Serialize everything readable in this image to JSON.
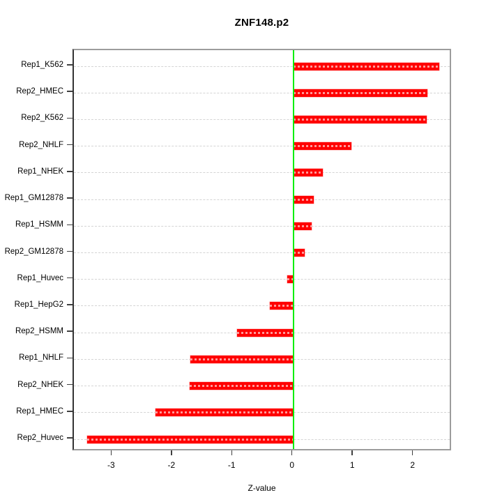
{
  "chart_data": {
    "type": "bar",
    "orientation": "horizontal",
    "title": "ZNF148.p2",
    "xlabel": "Z-value",
    "categories": [
      "Rep1_K562",
      "Rep2_HMEC",
      "Rep2_K562",
      "Rep2_NHLF",
      "Rep1_NHEK",
      "Rep1_GM12878",
      "Rep1_HSMM",
      "Rep2_GM12878",
      "Rep1_Huvec",
      "Rep1_HepG2",
      "Rep2_HSMM",
      "Rep1_NHLF",
      "Rep2_NHEK",
      "Rep1_HMEC",
      "Rep2_Huvec"
    ],
    "values": [
      2.42,
      2.22,
      2.21,
      0.96,
      0.49,
      0.34,
      0.3,
      0.19,
      -0.1,
      -0.39,
      -0.93,
      -1.71,
      -1.72,
      -2.29,
      -3.42
    ],
    "xticks": [
      "-3",
      "-2",
      "-1",
      "0",
      "1",
      "2"
    ],
    "xtick_values": [
      -3,
      -2,
      -1,
      0,
      1,
      2
    ],
    "xlim": [
      -3.64,
      2.64
    ],
    "grid": true,
    "baseline": 0,
    "colors": {
      "bar": "#ff0000",
      "bar_dash": "rgba(255,255,255,0.6)",
      "zero_line": "#00ee00",
      "grid_line": "#d4d4d4",
      "box": "#9c9c9c",
      "axis": "#333333",
      "tick": "#3f3f3f",
      "text": "#000000"
    }
  }
}
